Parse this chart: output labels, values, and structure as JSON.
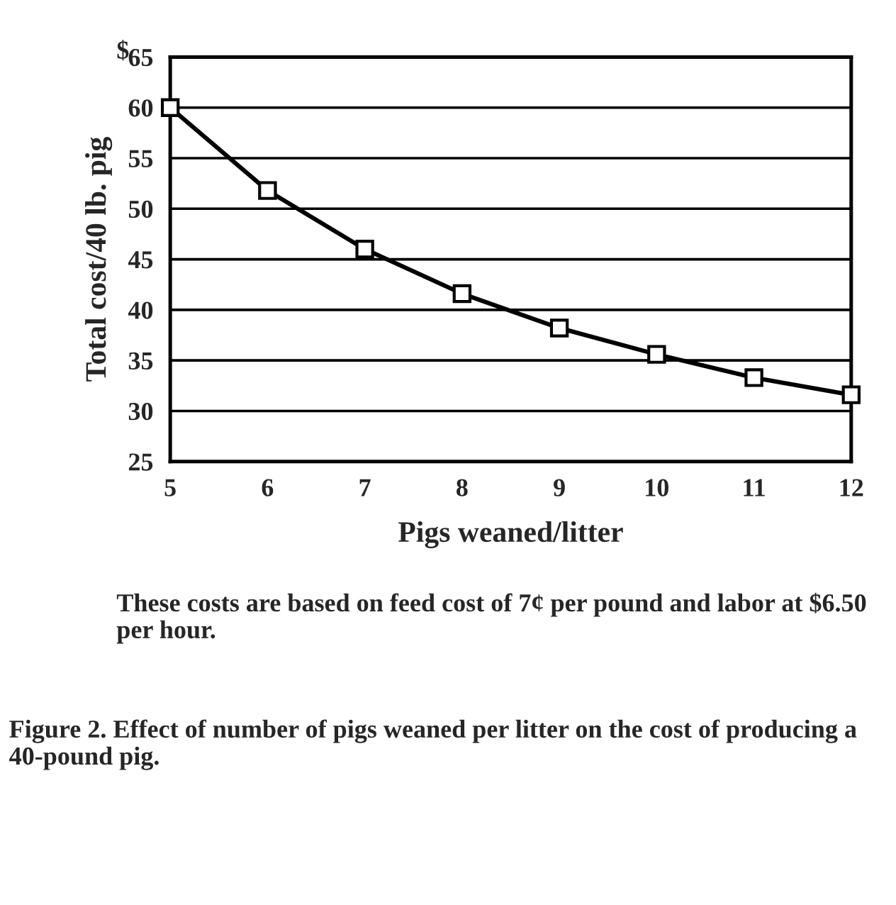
{
  "chart_data": {
    "type": "line",
    "xlabel": "Pigs weaned/litter",
    "ylabel": "Total cost/40 lb. pig",
    "x": [
      5,
      6,
      7,
      8,
      9,
      10,
      11,
      12
    ],
    "series": [
      {
        "color": "#000000",
        "values": [
          60,
          51.8,
          46,
          41.6,
          38.2,
          35.6,
          33.3,
          31.6
        ]
      }
    ],
    "xlim": [
      5,
      12
    ],
    "xticks": [
      5,
      6,
      7,
      8,
      9,
      10,
      11,
      12
    ],
    "ylim": [
      25,
      65
    ],
    "yticks": [
      25,
      30,
      35,
      40,
      45,
      50,
      55,
      60,
      65
    ],
    "grid": "y",
    "marker": "square",
    "line_style": "solid",
    "annotations": [
      "$",
      "These costs are based on feed cost of 7¢ per pound and labor at $6.50 per hour.",
      "Figure 2. Effect of number of pigs weaned per litter on the cost of producing a 40-pound pig."
    ]
  }
}
